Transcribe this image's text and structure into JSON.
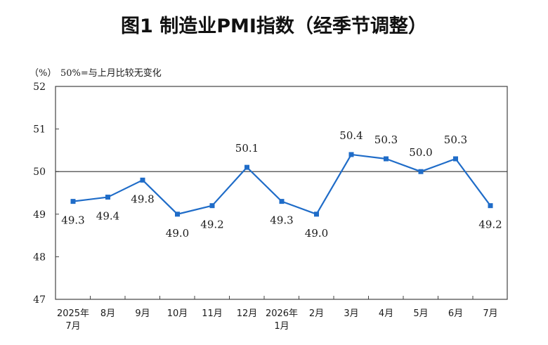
{
  "chart_data": {
    "type": "line",
    "title": "图1  制造业PMI指数（经季节调整）",
    "y_unit_label": "（%）",
    "reference_note": "50%=与上月比较无变化",
    "ylim": [
      47,
      52
    ],
    "yticks": [
      "52",
      "51",
      "50",
      "49",
      "48",
      "47"
    ],
    "reference_line": 50,
    "categories": [
      [
        "2025年",
        "7月"
      ],
      [
        "8月"
      ],
      [
        "9月"
      ],
      [
        "10月"
      ],
      [
        "11月"
      ],
      [
        "12月"
      ],
      [
        "2026年",
        "1月"
      ],
      [
        "2月"
      ],
      [
        "3月"
      ],
      [
        "4月"
      ],
      [
        "5月"
      ],
      [
        "6月"
      ],
      [
        "7月"
      ]
    ],
    "series": [
      {
        "values": [
          49.3,
          49.4,
          49.8,
          49.0,
          49.2,
          50.1,
          49.3,
          49.0,
          50.4,
          50.3,
          50.0,
          50.3,
          49.2
        ],
        "data_labels": [
          "49.3",
          "49.4",
          "49.8",
          "49.0",
          "49.2",
          "50.1",
          "49.3",
          "49.0",
          "50.4",
          "50.3",
          "50.0",
          "50.3",
          "49.2"
        ],
        "label_positions": [
          "below",
          "below",
          "below",
          "below",
          "below",
          "above",
          "below",
          "below",
          "above",
          "above",
          "above",
          "above",
          "below"
        ],
        "color": "#1f6cc8"
      }
    ],
    "grid": false,
    "axis_color": "#444444",
    "text_color": "#1a1a1a"
  }
}
